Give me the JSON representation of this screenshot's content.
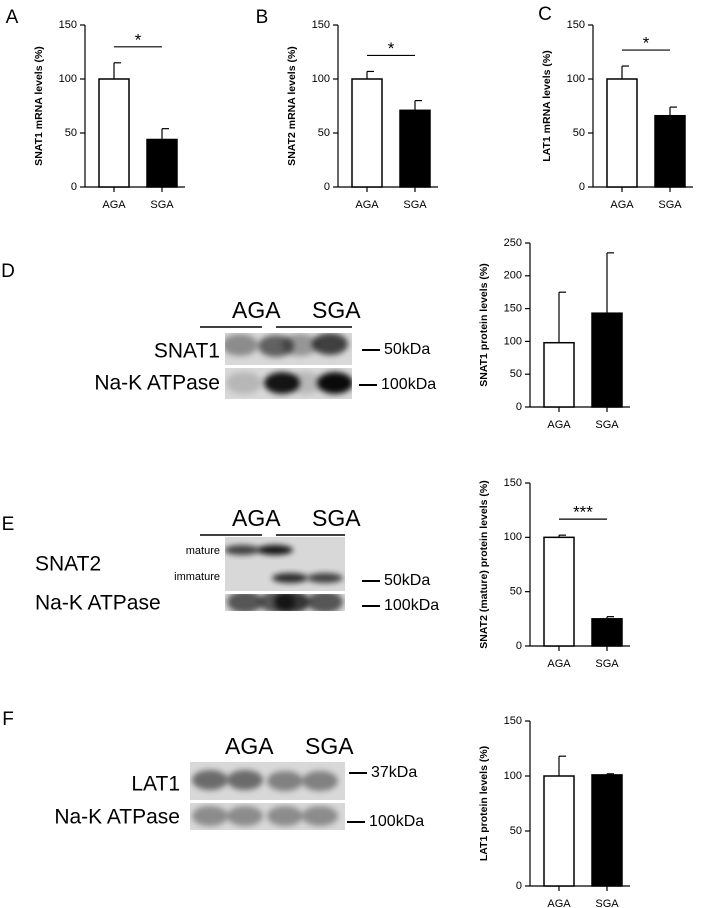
{
  "chart_data": [
    {
      "type": "bar",
      "panel": "A",
      "ylabel": "SNAT1 mRNA levels (%)",
      "categories": [
        "AGA",
        "SGA"
      ],
      "values": [
        100,
        44
      ],
      "errors": [
        15,
        10
      ],
      "colors": [
        "#ffffff",
        "#000000"
      ],
      "ylim": [
        0,
        150
      ],
      "yticks": [
        0,
        50,
        100,
        150
      ],
      "annotation": "*"
    },
    {
      "type": "bar",
      "panel": "B",
      "ylabel": "SNAT2 mRNA levels (%)",
      "categories": [
        "AGA",
        "SGA"
      ],
      "values": [
        100,
        71
      ],
      "errors": [
        7,
        9
      ],
      "colors": [
        "#ffffff",
        "#000000"
      ],
      "ylim": [
        0,
        150
      ],
      "yticks": [
        0,
        50,
        100,
        150
      ],
      "annotation": "*"
    },
    {
      "type": "bar",
      "panel": "C",
      "ylabel": "LAT1 mRNA levels (%)",
      "categories": [
        "AGA",
        "SGA"
      ],
      "values": [
        100,
        66
      ],
      "errors": [
        12,
        8
      ],
      "colors": [
        "#ffffff",
        "#000000"
      ],
      "ylim": [
        0,
        150
      ],
      "yticks": [
        0,
        50,
        100,
        150
      ],
      "annotation": "*"
    },
    {
      "type": "bar",
      "panel": "D",
      "ylabel": "SNAT1 protein levels (%)",
      "categories": [
        "AGA",
        "SGA"
      ],
      "values": [
        98,
        143
      ],
      "errors": [
        77,
        92
      ],
      "colors": [
        "#ffffff",
        "#000000"
      ],
      "ylim": [
        0,
        250
      ],
      "yticks": [
        0,
        50,
        100,
        150,
        200,
        250
      ]
    },
    {
      "type": "bar",
      "panel": "E",
      "ylabel": "SNAT2 (mature) protein levels (%)",
      "categories": [
        "AGA",
        "SGA"
      ],
      "values": [
        100,
        25
      ],
      "errors": [
        2,
        2
      ],
      "colors": [
        "#ffffff",
        "#000000"
      ],
      "ylim": [
        0,
        150
      ],
      "yticks": [
        0,
        50,
        100,
        150
      ],
      "annotation": "***"
    },
    {
      "type": "bar",
      "panel": "F",
      "ylabel": "LAT1 protein levels (%)",
      "categories": [
        "AGA",
        "SGA"
      ],
      "values": [
        100,
        101
      ],
      "errors": [
        18,
        1
      ],
      "colors": [
        "#ffffff",
        "#000000"
      ],
      "ylim": [
        0,
        150
      ],
      "yticks": [
        0,
        50,
        100,
        150
      ]
    }
  ],
  "blots": [
    {
      "headers": [
        "AGA",
        "SGA"
      ],
      "rows": [
        {
          "label": "SNAT1",
          "marker": "50kDa"
        },
        {
          "label": "Na-K ATPase",
          "marker": "100kDa"
        }
      ]
    },
    {
      "headers": [
        "AGA",
        "SGA"
      ],
      "rows": [
        {
          "label": "SNAT2",
          "bands": [
            "mature",
            "immature"
          ],
          "marker": "50kDa"
        },
        {
          "label": "Na-K ATPase",
          "marker": "100kDa"
        }
      ]
    },
    {
      "headers": [
        "AGA",
        "SGA"
      ],
      "rows": [
        {
          "label": "LAT1",
          "marker": "37kDa"
        },
        {
          "label": "Na-K ATPase",
          "marker": "100kDa"
        }
      ]
    }
  ]
}
